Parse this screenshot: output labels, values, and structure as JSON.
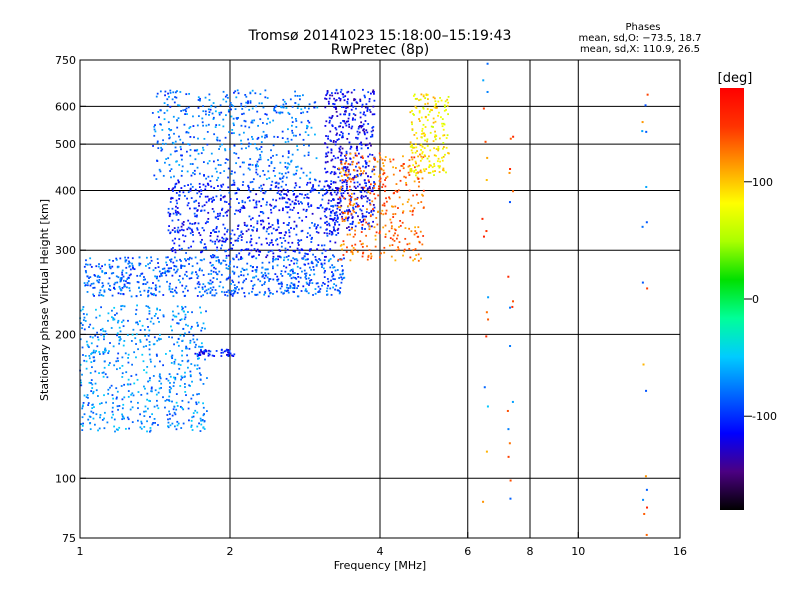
{
  "chart_data": {
    "type": "scatter",
    "title": "Tromsø 20141023 15:18:00–15:19:43",
    "subtitle": "RwPretec (8p)",
    "xlabel": "Frequency [MHz]",
    "ylabel": "Stationary phase Virtual Height [km]",
    "x_scale": "log2",
    "y_scale": "log",
    "xlim": [
      1,
      16
    ],
    "ylim": [
      75,
      750
    ],
    "x_ticks": [
      1,
      2,
      4,
      6,
      8,
      10,
      16
    ],
    "y_ticks": [
      75,
      100,
      200,
      300,
      400,
      500,
      600,
      750
    ],
    "gridlines_x": [
      2,
      4,
      6,
      8,
      10
    ],
    "gridlines_y": [
      100,
      200,
      300,
      400,
      500,
      600
    ],
    "grid": true,
    "legend_title": "Phases",
    "legend_lines": [
      "mean, sd,O: −73.5, 18.7",
      "mean, sd,X: 110.9, 26.5"
    ],
    "colorbar": {
      "label": "[deg]",
      "range": [
        -180,
        180
      ],
      "ticks": [
        100,
        0,
        -100
      ],
      "colors": [
        "#000000",
        "#4b0082",
        "#0000ff",
        "#0066ff",
        "#00ccff",
        "#00ff99",
        "#00e000",
        "#aaff00",
        "#ffff00",
        "#ff9900",
        "#ff3300",
        "#ff0000"
      ]
    },
    "clusters": [
      {
        "name": "O-trace lower band",
        "x_range": [
          1.02,
          3.4
        ],
        "y_range": [
          240,
          290
        ],
        "phase": -85,
        "density": 700
      },
      {
        "name": "O-trace main band",
        "x_range": [
          1.5,
          3.3
        ],
        "y_range": [
          290,
          420
        ],
        "phase": -105,
        "density": 700
      },
      {
        "name": "O-trace upper band",
        "x_range": [
          1.4,
          3.0
        ],
        "y_range": [
          420,
          650
        ],
        "phase": -80,
        "density": 500
      },
      {
        "name": "O-trace cusp",
        "x_range": [
          3.1,
          3.9
        ],
        "y_range": [
          330,
          650
        ],
        "phase": -115,
        "density": 500
      },
      {
        "name": "X-trace",
        "x_range": [
          3.3,
          4.9
        ],
        "y_range": [
          285,
          480
        ],
        "phase": 130,
        "density": 350
      },
      {
        "name": "X-trace cusp",
        "x_range": [
          4.6,
          5.5
        ],
        "y_range": [
          430,
          640
        ],
        "phase": 85,
        "density": 200
      },
      {
        "name": "low-frequency scatter",
        "x_range": [
          1.0,
          1.8
        ],
        "y_range": [
          125,
          230
        ],
        "phase": -70,
        "density": 600
      },
      {
        "name": "horizontal streak",
        "x_range": [
          1.7,
          2.05
        ],
        "y_range": [
          180,
          186
        ],
        "phase": -110,
        "density": 50
      }
    ],
    "isolated_columns_x": [
      6.5,
      7.3,
      13.6
    ]
  }
}
